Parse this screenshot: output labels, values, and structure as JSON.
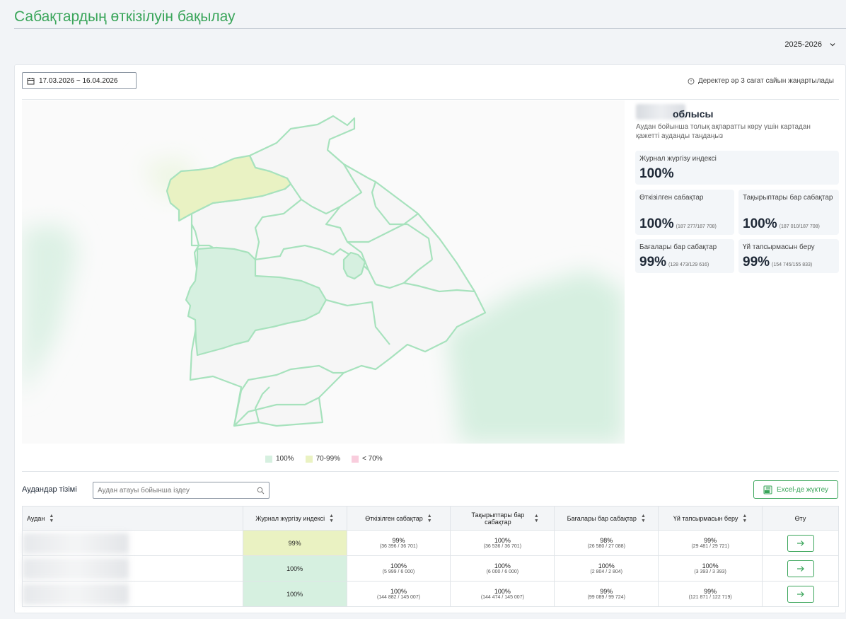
{
  "page": {
    "title": "Сабақтардың өткізілуін бақылау"
  },
  "year_select": {
    "value": "2025-2026"
  },
  "filters": {
    "date_range": "17.03.2026 ~ 16.04.2026",
    "update_note": "Деректер әр 3 сағат сайын жаңартылады"
  },
  "region": {
    "name": "облысы",
    "hint": "Аудан бойынша толық ақпаратты көру үшін картадан қажетті ауданды таңдаңыз"
  },
  "stats": {
    "journal_index": {
      "label": "Журнал жүргізу индексі",
      "value": "100%"
    },
    "conducted": {
      "label": "Өткізілген сабақтар",
      "value": "100%",
      "detail": "(187 277/187 708)"
    },
    "with_topics": {
      "label": "Тақырыптары бар сабақтар",
      "value": "100%",
      "detail": "(187 010/187 708)"
    },
    "with_grades": {
      "label": "Бағалары бар сабақтар",
      "value": "99%",
      "detail": "(128 473/129 616)"
    },
    "homework": {
      "label": "Үй тапсырмасын беру",
      "value": "99%",
      "detail": "(154 745/155 833)"
    }
  },
  "legend": [
    {
      "label": "100%",
      "color": "#d6f0e0"
    },
    {
      "label": "70-99%",
      "color": "#eaf2c2"
    },
    {
      "label": "< 70%",
      "color": "#f9cddd"
    }
  ],
  "districts": {
    "title": "Аудандар тізімі",
    "search_placeholder": "Аудан атауы бойынша іздеу",
    "excel_label": "Excel-де жүктеу",
    "columns": {
      "district": "Аудан",
      "journal_index": "Журнал жүргізу индексі",
      "conducted": "Өткізілген сабақтар",
      "topics": "Тақырыптары бар сабақтар",
      "grades": "Бағалары бар сабақтар",
      "homework": "Үй тапсырмасын беру",
      "go": "Өту"
    },
    "rows": [
      {
        "index": "99%",
        "conducted": "99%",
        "conducted_frac": "(36 396 / 36 701)",
        "topics": "100%",
        "topics_frac": "(36 536 / 36 701)",
        "grades": "98%",
        "grades_frac": "(26 580 / 27 088)",
        "homework": "99%",
        "homework_frac": "(29 481 / 29 721)"
      },
      {
        "index": "100%",
        "conducted": "100%",
        "conducted_frac": "(5 999 / 6 000)",
        "topics": "100%",
        "topics_frac": "(6 000 / 6 000)",
        "grades": "100%",
        "grades_frac": "(2 804 / 2 804)",
        "homework": "100%",
        "homework_frac": "(3 393 / 3 393)"
      },
      {
        "index": "100%",
        "conducted": "100%",
        "conducted_frac": "(144 882 / 145 007)",
        "topics": "100%",
        "topics_frac": "(144 474 / 145 007)",
        "grades": "99%",
        "grades_frac": "(99 089 / 99 724)",
        "homework": "99%",
        "homework_frac": "(121 871 / 122 719)"
      }
    ]
  }
}
